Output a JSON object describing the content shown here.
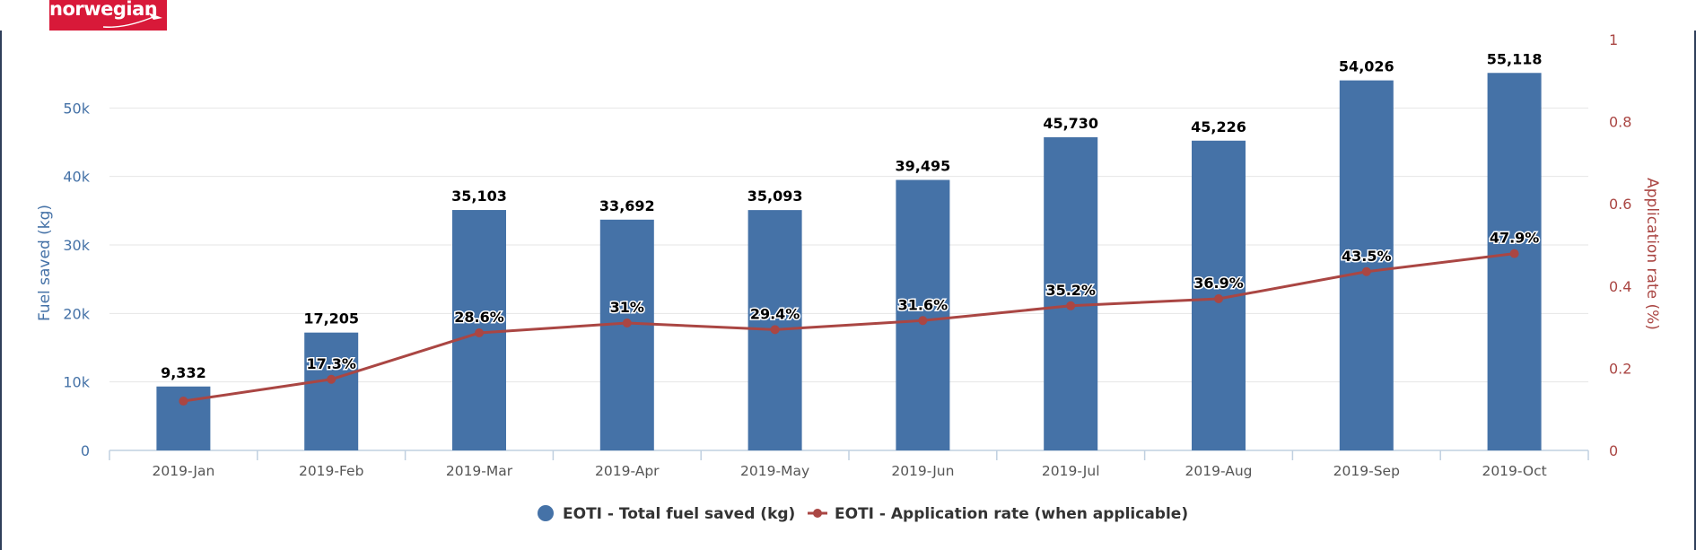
{
  "brand": {
    "name": "norwegian",
    "color": "#d81939"
  },
  "chart_data": {
    "type": "bar",
    "categories": [
      "2019-Jan",
      "2019-Feb",
      "2019-Mar",
      "2019-Apr",
      "2019-May",
      "2019-Jun",
      "2019-Jul",
      "2019-Aug",
      "2019-Sep",
      "2019-Oct"
    ],
    "series": [
      {
        "name": "EOTI - Total fuel saved (kg)",
        "type": "bar",
        "axis": "left",
        "color": "#4572a7",
        "values": [
          9332,
          17205,
          35103,
          33692,
          35093,
          39495,
          45730,
          45226,
          54026,
          55118
        ],
        "labels": [
          "9,332",
          "17,205",
          "35,103",
          "33,692",
          "35,093",
          "39,495",
          "45,730",
          "45,226",
          "54,026",
          "55,118"
        ]
      },
      {
        "name": "EOTI - Application rate (when applicable)",
        "type": "line",
        "axis": "right",
        "color": "#aa4643",
        "values": [
          0.12,
          0.173,
          0.286,
          0.31,
          0.294,
          0.316,
          0.352,
          0.369,
          0.435,
          0.479
        ],
        "labels": [
          "",
          "17.3%",
          "28.6%",
          "31%",
          "29.4%",
          "31.6%",
          "35.2%",
          "36.9%",
          "43.5%",
          "47.9%"
        ]
      }
    ],
    "y_left": {
      "label": "Fuel saved (kg)",
      "range": [
        0,
        60000
      ],
      "ticks": [
        0,
        10000,
        20000,
        30000,
        40000,
        50000
      ],
      "tick_labels": [
        "0",
        "10k",
        "20k",
        "30k",
        "40k",
        "50k"
      ],
      "color": "#4572a7"
    },
    "y_right": {
      "label": "Application rate (%)",
      "range": [
        0,
        1
      ],
      "ticks": [
        0,
        0.2,
        0.4,
        0.6,
        0.8,
        1
      ],
      "tick_labels": [
        "0",
        "0.2",
        "0.4",
        "0.6",
        "0.8",
        "1"
      ],
      "color": "#aa4643"
    },
    "grid": true,
    "legend": "bottom-center"
  }
}
